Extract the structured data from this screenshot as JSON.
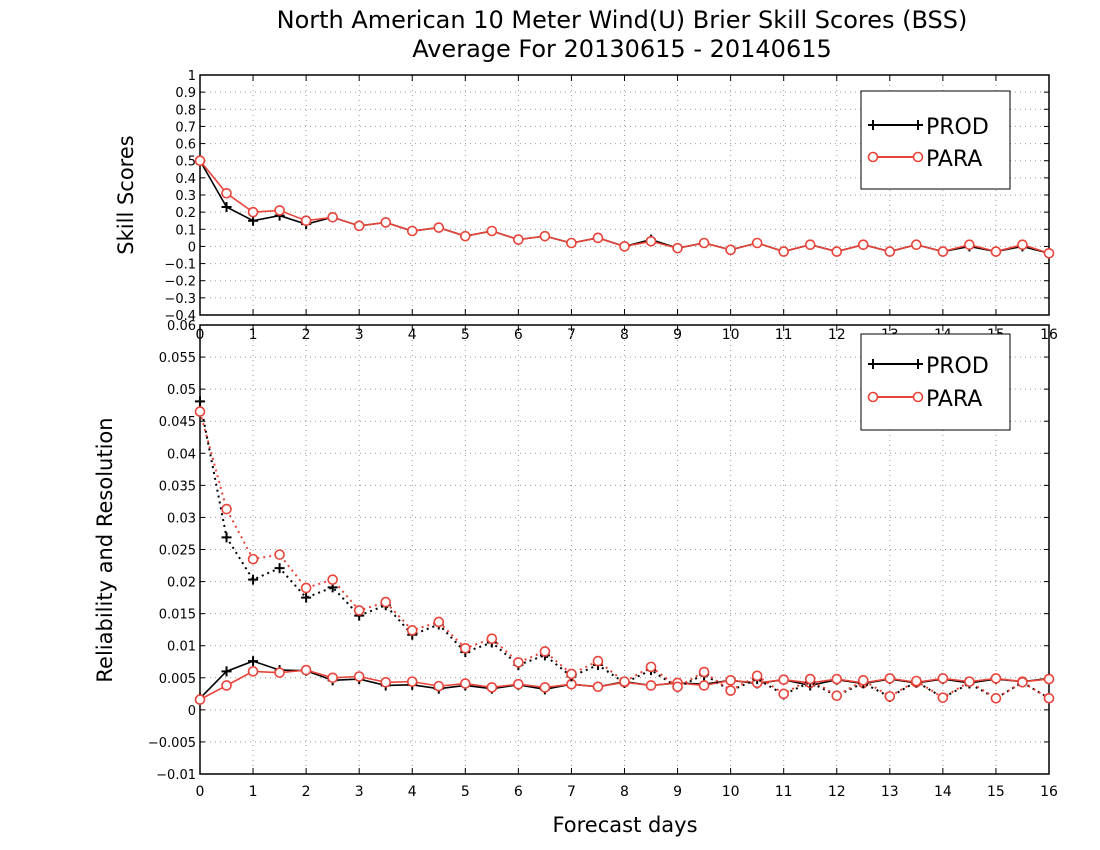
{
  "title": {
    "line1": "North American 10 Meter Wind(U) Brier Skill Scores (BSS)",
    "line2": "Average For 20130615 - 20140615"
  },
  "colors": {
    "prod": "#000000",
    "para": "#e8443a",
    "grid": "#999999"
  },
  "chart_data": [
    {
      "type": "line",
      "ylabel": "Skill Scores",
      "xlabel": "",
      "xlim": [
        0,
        16
      ],
      "ylim": [
        -0.4,
        1
      ],
      "grid": true,
      "legend_position": "top-right",
      "x_ticks": [
        0,
        1,
        2,
        3,
        4,
        5,
        6,
        7,
        8,
        9,
        10,
        11,
        12,
        13,
        14,
        15,
        16
      ],
      "y_ticks": [
        "-0.4",
        "-0.3",
        "-0.2",
        "-0.1",
        "0",
        "0.1",
        "0.2",
        "0.3",
        "0.4",
        "0.5",
        "0.6",
        "0.7",
        "0.8",
        "0.9",
        "1"
      ],
      "x": [
        0,
        0.5,
        1,
        1.5,
        2,
        2.5,
        3,
        3.5,
        4,
        4.5,
        5,
        5.5,
        6,
        6.5,
        7,
        7.5,
        8,
        8.5,
        9,
        9.5,
        10,
        10.5,
        11,
        11.5,
        12,
        12.5,
        13,
        13.5,
        14,
        14.5,
        15,
        15.5,
        16
      ],
      "series": [
        {
          "name": "PROD",
          "style": "solid",
          "marker": "plus",
          "values": [
            0.5,
            0.23,
            0.15,
            0.18,
            0.13,
            0.17,
            0.12,
            0.14,
            0.09,
            0.11,
            0.06,
            0.09,
            0.04,
            0.06,
            0.02,
            0.05,
            0.0,
            0.04,
            -0.01,
            0.02,
            -0.02,
            0.02,
            -0.03,
            0.01,
            -0.03,
            0.01,
            -0.03,
            0.01,
            -0.03,
            0.0,
            -0.03,
            0.0,
            -0.04
          ]
        },
        {
          "name": "PARA",
          "style": "solid",
          "marker": "circle",
          "values": [
            0.5,
            0.31,
            0.2,
            0.21,
            0.15,
            0.17,
            0.12,
            0.14,
            0.09,
            0.11,
            0.06,
            0.09,
            0.04,
            0.06,
            0.02,
            0.05,
            0.0,
            0.03,
            -0.01,
            0.02,
            -0.02,
            0.02,
            -0.03,
            0.01,
            -0.03,
            0.01,
            -0.03,
            0.01,
            -0.03,
            0.01,
            -0.03,
            0.01,
            -0.04
          ]
        }
      ]
    },
    {
      "type": "line",
      "ylabel": "Reliability and Resolution",
      "xlabel": "Forecast days",
      "xlim": [
        0,
        16
      ],
      "ylim": [
        -0.01,
        0.06
      ],
      "grid": true,
      "legend_position": "top-right",
      "x_ticks": [
        0,
        1,
        2,
        3,
        4,
        5,
        6,
        7,
        8,
        9,
        10,
        11,
        12,
        13,
        14,
        15,
        16
      ],
      "y_ticks": [
        "-0.01",
        "-0.005",
        "0",
        "0.005",
        "0.01",
        "0.015",
        "0.02",
        "0.025",
        "0.03",
        "0.035",
        "0.04",
        "0.045",
        "0.05",
        "0.055",
        "0.06"
      ],
      "x": [
        0,
        0.5,
        1,
        1.5,
        2,
        2.5,
        3,
        3.5,
        4,
        4.5,
        5,
        5.5,
        6,
        6.5,
        7,
        7.5,
        8,
        8.5,
        9,
        9.5,
        10,
        10.5,
        11,
        11.5,
        12,
        12.5,
        13,
        13.5,
        14,
        14.5,
        15,
        15.5,
        16
      ],
      "series": [
        {
          "name": "PROD",
          "style": "solid",
          "marker": "plus",
          "values": [
            0.0018,
            0.006,
            0.0076,
            0.0062,
            0.0061,
            0.0046,
            0.0048,
            0.0038,
            0.0039,
            0.0033,
            0.0038,
            0.0033,
            0.0039,
            0.0032,
            0.004,
            0.0036,
            0.0044,
            0.0038,
            0.0042,
            0.004,
            0.0046,
            0.0041,
            0.0047,
            0.0038,
            0.0047,
            0.0041,
            0.0048,
            0.0042,
            0.0048,
            0.0042,
            0.0048,
            0.0044,
            0.0049
          ]
        },
        {
          "name": "PARA",
          "style": "solid",
          "marker": "circle",
          "values": [
            0.0016,
            0.0038,
            0.006,
            0.0058,
            0.0062,
            0.005,
            0.0052,
            0.0043,
            0.0044,
            0.0037,
            0.0041,
            0.0035,
            0.004,
            0.0035,
            0.004,
            0.0036,
            0.0043,
            0.0038,
            0.0042,
            0.0038,
            0.0046,
            0.0042,
            0.0047,
            0.0042,
            0.0048,
            0.0042,
            0.0049,
            0.0043,
            0.0049,
            0.0044,
            0.0049,
            0.0044,
            0.0048
          ]
        },
        {
          "name": "",
          "style": "dotted",
          "marker": "plus",
          "color_key": "prod",
          "values": [
            0.0481,
            0.0269,
            0.0203,
            0.0221,
            0.0175,
            0.0191,
            0.0147,
            0.0163,
            0.0117,
            0.0133,
            0.009,
            0.0105,
            0.007,
            0.0085,
            0.0052,
            0.007,
            0.0042,
            0.0062,
            0.0035,
            0.0055,
            0.003,
            0.0048,
            0.0024,
            0.0043,
            0.0022,
            0.0042,
            0.002,
            0.0044,
            0.0019,
            0.0041,
            0.0018,
            0.0043,
            0.0018
          ]
        },
        {
          "name": "",
          "style": "dotted",
          "marker": "circle",
          "color_key": "para",
          "values": [
            0.0465,
            0.0313,
            0.0235,
            0.0242,
            0.019,
            0.0203,
            0.0155,
            0.0168,
            0.0124,
            0.0137,
            0.0096,
            0.0111,
            0.0074,
            0.0091,
            0.0056,
            0.0076,
            0.0044,
            0.0067,
            0.0036,
            0.0059,
            0.003,
            0.0053,
            0.0025,
            0.0048,
            0.0022,
            0.0046,
            0.0021,
            0.0045,
            0.0019,
            0.0044,
            0.0018,
            0.0043,
            0.0018
          ]
        }
      ]
    }
  ],
  "legend": {
    "items": [
      "PROD",
      "PARA"
    ]
  }
}
